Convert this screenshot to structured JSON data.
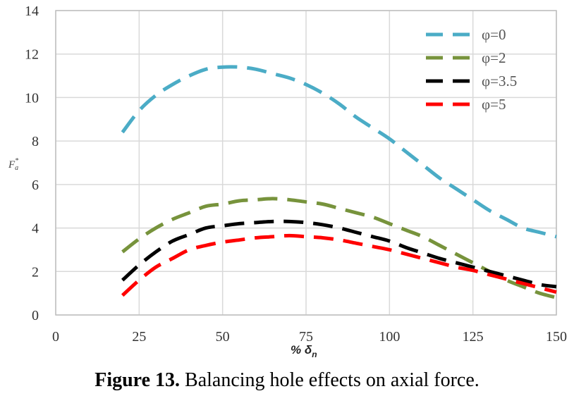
{
  "chart_data": {
    "type": "line",
    "title": "",
    "xlabel_prefix": "% ",
    "xlabel_symbol": "δ",
    "xlabel_sub": "n",
    "ylabel_symbol": "F",
    "ylabel_sub": "a",
    "ylabel_sup": "*",
    "xlim": [
      0,
      150
    ],
    "ylim": [
      0,
      14
    ],
    "x_ticks": [
      0,
      25,
      50,
      75,
      100,
      125,
      150
    ],
    "y_ticks": [
      0,
      2,
      4,
      6,
      8,
      10,
      12,
      14
    ],
    "grid": true,
    "legend_position": "top-right",
    "x": [
      20,
      25,
      30,
      35,
      40,
      45,
      50,
      55,
      60,
      65,
      70,
      75,
      80,
      85,
      90,
      95,
      100,
      105,
      110,
      115,
      120,
      125,
      130,
      135,
      140,
      145,
      150
    ],
    "series": [
      {
        "name": "φ=0",
        "color": "#4bacc6",
        "values": [
          8.4,
          9.4,
          10.1,
          10.6,
          11.0,
          11.3,
          11.4,
          11.4,
          11.3,
          11.1,
          10.9,
          10.6,
          10.2,
          9.7,
          9.1,
          8.6,
          8.1,
          7.5,
          6.9,
          6.3,
          5.8,
          5.3,
          4.8,
          4.4,
          4.0,
          3.8,
          3.6
        ]
      },
      {
        "name": "φ=2",
        "color": "#77933c",
        "values": [
          2.9,
          3.5,
          4.0,
          4.4,
          4.7,
          5.0,
          5.1,
          5.25,
          5.3,
          5.35,
          5.3,
          5.2,
          5.1,
          4.9,
          4.7,
          4.5,
          4.2,
          3.9,
          3.6,
          3.2,
          2.8,
          2.4,
          2.0,
          1.6,
          1.3,
          1.0,
          0.8
        ]
      },
      {
        "name": "φ=3.5",
        "color": "#000000",
        "values": [
          1.6,
          2.3,
          2.9,
          3.4,
          3.7,
          4.0,
          4.1,
          4.2,
          4.25,
          4.3,
          4.3,
          4.25,
          4.15,
          4.0,
          3.8,
          3.6,
          3.4,
          3.1,
          2.85,
          2.6,
          2.4,
          2.2,
          2.0,
          1.8,
          1.6,
          1.4,
          1.3
        ]
      },
      {
        "name": "φ=5",
        "color": "#ff0000",
        "values": [
          0.9,
          1.6,
          2.2,
          2.6,
          3.0,
          3.2,
          3.35,
          3.45,
          3.55,
          3.6,
          3.65,
          3.6,
          3.55,
          3.45,
          3.3,
          3.15,
          3.0,
          2.8,
          2.6,
          2.4,
          2.2,
          2.05,
          1.85,
          1.65,
          1.45,
          1.25,
          1.05
        ]
      }
    ]
  },
  "caption": {
    "label": "Figure 13.",
    "text": " Balancing hole effects on axial force."
  }
}
